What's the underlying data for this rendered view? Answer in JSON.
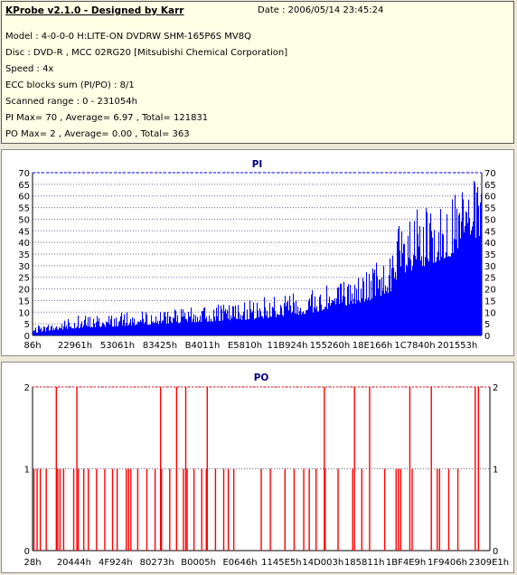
{
  "info": {
    "title": "KProbe v2.1.0 - Designed by Karr",
    "date": "Date : 2006/05/14 23:45:24",
    "lines": [
      "Model : 4-0-0-0 H:LITE-ON DVDRW SHM-165P6S MV8Q",
      "Disc : DVD-R , MCC 02RG20   [Mitsubishi Chemical Corporation]",
      "Speed : 4x",
      "ECC blocks sum (PI/PO) : 8/1",
      "Scanned range : 0 - 231054h",
      "PI Max= 70 , Average= 6.97 , Total= 121831",
      "PO Max= 2 , Average= 0.00 , Total= 363"
    ]
  },
  "colors": {
    "pi_fill": "#0000ff",
    "po_stroke": "#ff0000",
    "pi_max_line": "#0000ff",
    "po_max_line": "#ff0000",
    "grid": "#6a6aa0",
    "title": "#000080"
  },
  "chart_data": [
    {
      "type": "area",
      "title": "PI",
      "xlabel": "",
      "ylabel": "",
      "ylim": [
        0,
        70
      ],
      "yticks": [
        0,
        5,
        10,
        15,
        20,
        25,
        30,
        35,
        40,
        45,
        50,
        55,
        60,
        65,
        70
      ],
      "xtick_labels": [
        "86h",
        "22961h",
        "53061h",
        "83425h",
        "B4011h",
        "E5810h",
        "11B924h",
        "155260h",
        "18E166h",
        "1C7840h",
        "201553h"
      ],
      "grid": true,
      "max_line": 70,
      "x_range": [
        0,
        2297940
      ],
      "profile": [
        {
          "x": 0.0,
          "base": 1,
          "peak": 4
        },
        {
          "x": 0.04,
          "base": 2,
          "peak": 5
        },
        {
          "x": 0.1,
          "base": 3,
          "peak": 9
        },
        {
          "x": 0.2,
          "base": 4,
          "peak": 10
        },
        {
          "x": 0.3,
          "base": 5,
          "peak": 11
        },
        {
          "x": 0.4,
          "base": 6,
          "peak": 13
        },
        {
          "x": 0.5,
          "base": 7,
          "peak": 16
        },
        {
          "x": 0.6,
          "base": 9,
          "peak": 20
        },
        {
          "x": 0.68,
          "base": 12,
          "peak": 24
        },
        {
          "x": 0.75,
          "base": 15,
          "peak": 30
        },
        {
          "x": 0.8,
          "base": 19,
          "peak": 36
        },
        {
          "x": 0.82,
          "base": 25,
          "peak": 54
        },
        {
          "x": 0.88,
          "base": 30,
          "peak": 55
        },
        {
          "x": 0.93,
          "base": 34,
          "peak": 58
        },
        {
          "x": 0.97,
          "base": 42,
          "peak": 70
        },
        {
          "x": 1.0,
          "base": 42,
          "peak": 62
        }
      ]
    },
    {
      "type": "bar",
      "title": "PO",
      "xlabel": "",
      "ylabel": "",
      "ylim": [
        0,
        2
      ],
      "yticks": [
        0,
        1,
        2
      ],
      "xtick_labels": [
        "28h",
        "20444h",
        "4F924h",
        "80273h",
        "B0005h",
        "E0646h",
        "1145E5h",
        "14D003h",
        "185811h",
        "1BF4E9h",
        "1F9406h",
        "2309E1h"
      ],
      "grid": true,
      "max_line": 2,
      "x_range": [
        0,
        2296289
      ],
      "spikes_level1": [
        0.003,
        0.01,
        0.017,
        0.03,
        0.055,
        0.06,
        0.068,
        0.09,
        0.1,
        0.112,
        0.122,
        0.14,
        0.158,
        0.175,
        0.185,
        0.205,
        0.21,
        0.215,
        0.23,
        0.25,
        0.268,
        0.282,
        0.3,
        0.315,
        0.33,
        0.338,
        0.353,
        0.37,
        0.38,
        0.4,
        0.418,
        0.428,
        0.44,
        0.5,
        0.52,
        0.552,
        0.572,
        0.593,
        0.605,
        0.62,
        0.64,
        0.668,
        0.7,
        0.72,
        0.77,
        0.795,
        0.8,
        0.805,
        0.83,
        0.885,
        0.89,
        0.91,
        0.93
      ],
      "spikes_level2": [
        0.052,
        0.097,
        0.28,
        0.315,
        0.335,
        0.382,
        0.638,
        0.704,
        0.737,
        0.825,
        0.872,
        0.968,
        0.975
      ]
    }
  ]
}
